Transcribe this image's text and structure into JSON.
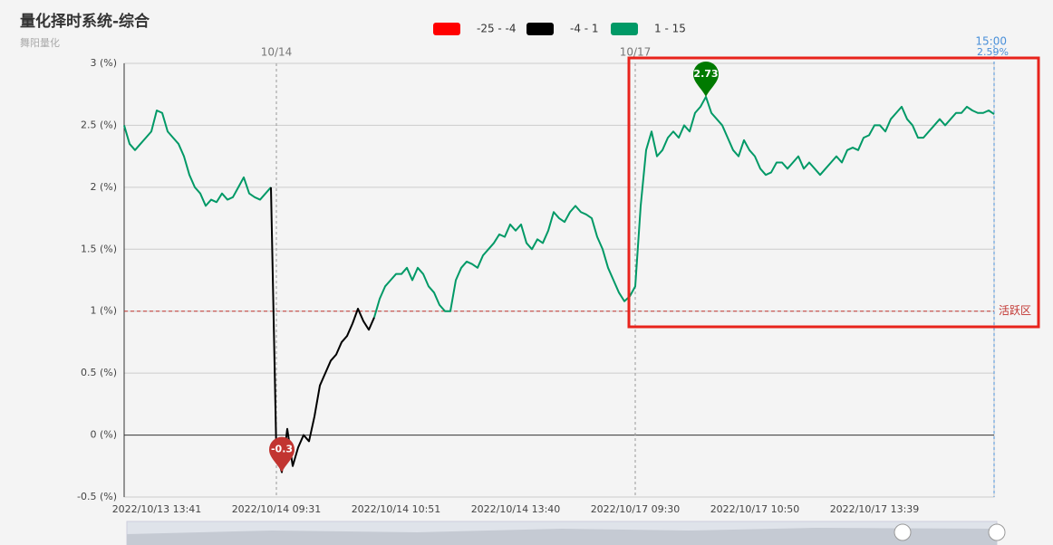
{
  "chart_data": {
    "type": "line",
    "title": "量化择时系统-综合",
    "subtitle": "舞阳量化",
    "pieces": [
      {
        "min": -25,
        "max": -4,
        "label": "-25 - -4",
        "color": "#ff0000"
      },
      {
        "min": -4,
        "max": 1,
        "label": "-4 - 1",
        "color": "#000000"
      },
      {
        "min": 1,
        "max": 15,
        "label": "1 - 15",
        "color": "#009966"
      }
    ],
    "categories": [
      null,
      null,
      null,
      null,
      null,
      null,
      "2022/10/13 13:41",
      null,
      null,
      null,
      null,
      null,
      null,
      null,
      null,
      null,
      null,
      null,
      null,
      null,
      null,
      null,
      null,
      null,
      null,
      null,
      null,
      null,
      "2022/10/14 09:31",
      null,
      null,
      null,
      null,
      null,
      null,
      null,
      null,
      null,
      null,
      null,
      null,
      null,
      null,
      null,
      null,
      null,
      null,
      null,
      null,
      null,
      "2022/10/14 10:51",
      null,
      null,
      null,
      null,
      null,
      null,
      null,
      null,
      null,
      null,
      null,
      null,
      null,
      null,
      null,
      null,
      null,
      null,
      null,
      null,
      null,
      "2022/10/14 13:40",
      null,
      null,
      null,
      null,
      null,
      null,
      null,
      null,
      null,
      null,
      null,
      null,
      null,
      null,
      null,
      null,
      null,
      null,
      null,
      null,
      null,
      "2022/10/17 09:30",
      null,
      null,
      null,
      null,
      null,
      null,
      null,
      null,
      null,
      null,
      null,
      null,
      null,
      null,
      null,
      null,
      null,
      null,
      null,
      null,
      null,
      "2022/10/17 10:50",
      null,
      null,
      null,
      null,
      null,
      null,
      null,
      null,
      null,
      null,
      null,
      null,
      null,
      null,
      null,
      null,
      null,
      null,
      null,
      null,
      null,
      "2022/10/17 13:39",
      null,
      null,
      null,
      null,
      null,
      null,
      null,
      null,
      null,
      null,
      null,
      null,
      null,
      null,
      null,
      null,
      null,
      null,
      null,
      null,
      null,
      null
    ],
    "series": [
      {
        "values": [
          2.5,
          2.35,
          2.3,
          2.35,
          2.4,
          2.45,
          2.62,
          2.6,
          2.45,
          2.4,
          2.35,
          2.25,
          2.1,
          2.0,
          1.95,
          1.85,
          1.9,
          1.88,
          1.95,
          1.9,
          1.92,
          2.0,
          2.08,
          1.95,
          1.92,
          1.9,
          1.95,
          2.0,
          -0.15,
          -0.3,
          0.05,
          -0.25,
          -0.1,
          0.0,
          -0.05,
          0.15,
          0.4,
          0.5,
          0.6,
          0.65,
          0.75,
          0.8,
          0.9,
          1.02,
          0.92,
          0.85,
          0.95,
          1.1,
          1.2,
          1.25,
          1.3,
          1.3,
          1.35,
          1.25,
          1.35,
          1.3,
          1.2,
          1.15,
          1.05,
          1.0,
          1.0,
          1.25,
          1.35,
          1.4,
          1.38,
          1.35,
          1.45,
          1.5,
          1.55,
          1.62,
          1.6,
          1.7,
          1.65,
          1.7,
          1.55,
          1.5,
          1.58,
          1.55,
          1.65,
          1.8,
          1.75,
          1.72,
          1.8,
          1.85,
          1.8,
          1.78,
          1.75,
          1.6,
          1.5,
          1.35,
          1.25,
          1.15,
          1.08,
          1.12,
          1.2,
          1.85,
          2.3,
          2.45,
          2.25,
          2.3,
          2.4,
          2.45,
          2.4,
          2.5,
          2.45,
          2.6,
          2.65,
          2.73,
          2.6,
          2.55,
          2.5,
          2.4,
          2.3,
          2.25,
          2.38,
          2.3,
          2.25,
          2.15,
          2.1,
          2.12,
          2.2,
          2.2,
          2.15,
          2.2,
          2.25,
          2.15,
          2.2,
          2.15,
          2.1,
          2.15,
          2.2,
          2.25,
          2.2,
          2.3,
          2.32,
          2.3,
          2.4,
          2.42,
          2.5,
          2.5,
          2.45,
          2.55,
          2.6,
          2.65,
          2.55,
          2.5,
          2.4,
          2.4,
          2.45,
          2.5,
          2.55,
          2.5,
          2.55,
          2.6,
          2.6,
          2.65,
          2.62,
          2.6,
          2.6,
          2.62,
          2.59
        ]
      }
    ],
    "mark_points": [
      {
        "index": 29,
        "color": "#c23531"
      },
      {
        "index": 107,
        "color": "#007a00"
      }
    ],
    "day_lines": [
      {
        "x": 28,
        "label": "10/14"
      },
      {
        "x": 94,
        "label": "10/17"
      }
    ],
    "end_line": {
      "label": "15:00",
      "value_label": "2.59%"
    },
    "threshold": {
      "value": 1,
      "label": "活跃区"
    },
    "ylim": [
      -0.5,
      3
    ],
    "yticks": [
      {
        "value": -0.5,
        "label": "-0.5 (%)"
      },
      {
        "value": 0,
        "label": "0 (%)"
      },
      {
        "value": 0.5,
        "label": "0.5 (%)"
      },
      {
        "value": 1,
        "label": "1 (%)"
      },
      {
        "value": 1.5,
        "label": "1.5 (%)"
      },
      {
        "value": 2,
        "label": "2 (%)"
      },
      {
        "value": 2.5,
        "label": "2.5 (%)"
      },
      {
        "value": 3,
        "label": "3 (%)"
      }
    ],
    "grid": true
  }
}
